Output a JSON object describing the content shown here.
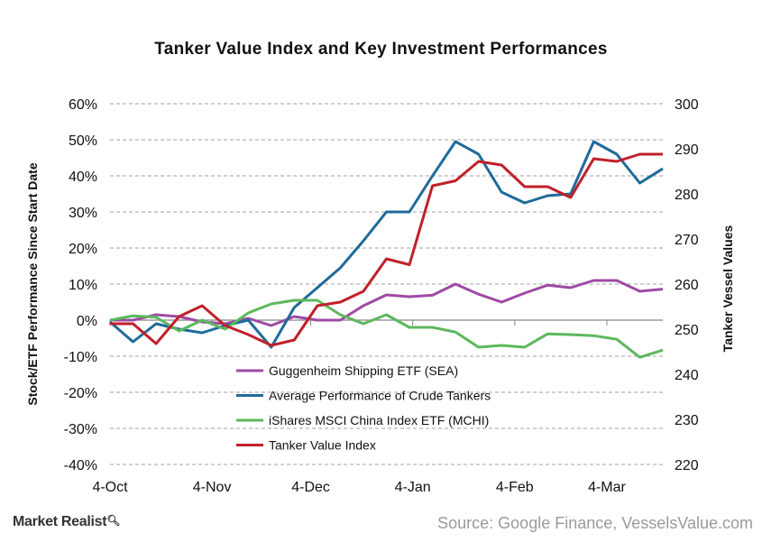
{
  "chart_data": {
    "type": "line",
    "title": "Tanker Value Index and Key Investment Performances",
    "ylabel": "Stock/ETF Performance Since Start Date",
    "y2label": "Tanker Vessel Values",
    "ylim": [
      -40,
      60
    ],
    "y2lim": [
      220,
      300
    ],
    "yticks": [
      "-40%",
      "-30%",
      "-20%",
      "-10%",
      "0%",
      "10%",
      "20%",
      "30%",
      "40%",
      "50%",
      "60%"
    ],
    "y2ticks": [
      "220",
      "230",
      "240",
      "250",
      "260",
      "270",
      "280",
      "290",
      "300"
    ],
    "xticks": [
      "4-Oct",
      "4-Nov",
      "4-Dec",
      "4-Jan",
      "4-Feb",
      "4-Mar"
    ],
    "grid": true,
    "legend_position": "bottom-center",
    "x": [
      "4-Oct",
      "11-Oct",
      "18-Oct",
      "25-Oct",
      "1-Nov",
      "8-Nov",
      "15-Nov",
      "22-Nov",
      "29-Nov",
      "6-Dec",
      "13-Dec",
      "20-Dec",
      "27-Dec",
      "3-Jan",
      "10-Jan",
      "17-Jan",
      "24-Jan",
      "31-Jan",
      "7-Feb",
      "14-Feb",
      "21-Feb",
      "28-Feb",
      "7-Mar",
      "14-Mar",
      "21-Mar"
    ],
    "series": [
      {
        "name": "Guggenheim Shipping ETF (SEA)",
        "axis": "left",
        "color": "#9e4aa3",
        "values": [
          0,
          0,
          1.5,
          1,
          -0.5,
          -1,
          0.5,
          -1.5,
          1,
          0,
          0,
          4,
          7,
          6.5,
          6.9,
          10,
          7.2,
          5,
          7.5,
          9.7,
          9,
          11,
          11,
          8,
          8.6
        ]
      },
      {
        "name": "Average Performance of Crude Tankers",
        "axis": "left",
        "color": "#1f6a9a",
        "values": [
          -0.5,
          -6,
          -1,
          -2.5,
          -3.5,
          -1.5,
          0,
          -7.5,
          3.5,
          9,
          14.5,
          22,
          30,
          30,
          40,
          49.5,
          46,
          35.5,
          32.5,
          34.5,
          35,
          49.5,
          46,
          38,
          42
        ]
      },
      {
        "name": "iShares MSCI China Index ETF (MCHI)",
        "axis": "left",
        "color": "#5cb85c",
        "values": [
          0,
          1.2,
          0.8,
          -3,
          0,
          -2.5,
          2,
          4.5,
          5.5,
          5.5,
          1.5,
          -1,
          1.5,
          -2,
          -2,
          -3.3,
          -7.5,
          -7,
          -7.5,
          -3.8,
          -4,
          -4.3,
          -5.3,
          -10.3,
          -8.3
        ]
      },
      {
        "name": "Tanker Value Index",
        "axis": "right",
        "color": "#c0202a",
        "values": [
          251.2,
          251.2,
          246.8,
          252.8,
          255.2,
          250.8,
          248.8,
          246.4,
          247.6,
          255.2,
          256,
          258.4,
          265.6,
          264.3,
          281.8,
          282.9,
          287.2,
          286.4,
          281.6,
          281.6,
          279.2,
          287.8,
          287.2,
          288.8,
          288.8
        ]
      }
    ]
  },
  "branding": {
    "logo_text": "Market Realist"
  },
  "source": "Source: Google Finance, VesselsValue.com"
}
